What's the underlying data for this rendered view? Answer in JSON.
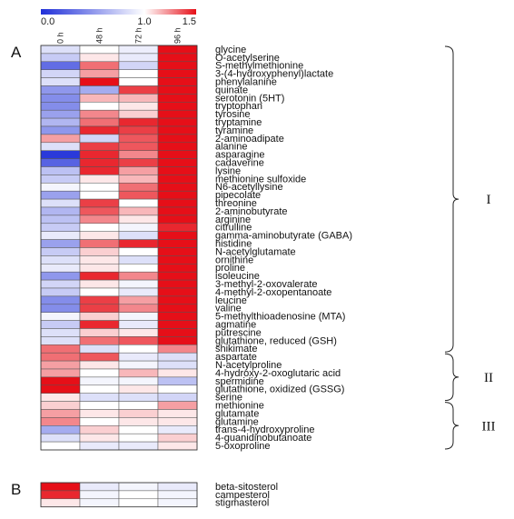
{
  "chart_data": {
    "type": "heatmap",
    "colorbar": {
      "ticks": [
        "0.0",
        "1.0",
        "1.5"
      ],
      "range": [
        0.0,
        1.5
      ],
      "colors": {
        "low": "#1f2fd8",
        "mid": "#ffffff",
        "high": "#e60f18"
      }
    },
    "columns": [
      "0 h",
      "48 h",
      "72 h",
      "96 h"
    ],
    "panels": [
      {
        "label": "A",
        "rows": [
          {
            "name": "glycine",
            "values": [
              0.85,
              1.0,
              0.92,
              1.6
            ]
          },
          {
            "name": "O-acetylserine",
            "values": [
              0.75,
              1.05,
              0.9,
              1.5
            ]
          },
          {
            "name": "S-methylmethionine",
            "values": [
              0.3,
              1.3,
              0.8,
              1.5
            ]
          },
          {
            "name": "3-(4-hydroxyphenyl)lactate",
            "values": [
              0.8,
              1.2,
              1.0,
              1.5
            ]
          },
          {
            "name": "phenylalanine",
            "values": [
              0.85,
              1.5,
              1.0,
              1.5
            ]
          },
          {
            "name": "quinate",
            "values": [
              0.5,
              0.6,
              1.4,
              1.5
            ]
          },
          {
            "name": "serotonin (5HT)",
            "values": [
              0.45,
              1.15,
              1.15,
              1.5
            ]
          },
          {
            "name": "tryptophan",
            "values": [
              0.45,
              1.0,
              1.05,
              1.5
            ]
          },
          {
            "name": "tyrosine",
            "values": [
              0.55,
              1.25,
              1.1,
              1.5
            ]
          },
          {
            "name": "tryptamine",
            "values": [
              0.65,
              1.3,
              1.45,
              1.5
            ]
          },
          {
            "name": "tyramine",
            "values": [
              0.5,
              1.45,
              1.4,
              1.5
            ]
          },
          {
            "name": "2-aminoadipate",
            "values": [
              1.2,
              0.8,
              1.35,
              1.5
            ]
          },
          {
            "name": "alanine",
            "values": [
              0.85,
              1.4,
              1.35,
              1.5
            ]
          },
          {
            "name": "asparagine",
            "values": [
              0.05,
              1.45,
              1.25,
              1.5
            ]
          },
          {
            "name": "cadaverine",
            "values": [
              0.25,
              1.45,
              1.4,
              1.5
            ]
          },
          {
            "name": "lysine",
            "values": [
              0.7,
              1.45,
              1.2,
              1.5
            ]
          },
          {
            "name": "methionine sulfoxide",
            "values": [
              0.75,
              1.05,
              1.15,
              1.5
            ]
          },
          {
            "name": "N6-acetyllysine",
            "values": [
              0.95,
              1.0,
              1.3,
              1.5
            ]
          },
          {
            "name": "pipecolate",
            "values": [
              0.55,
              1.0,
              1.35,
              1.5
            ]
          },
          {
            "name": "threonine",
            "values": [
              0.85,
              1.4,
              1.0,
              1.5
            ]
          },
          {
            "name": "2-aminobutyrate",
            "values": [
              0.65,
              1.35,
              1.15,
              1.5
            ]
          },
          {
            "name": "arginine",
            "values": [
              0.7,
              1.25,
              1.05,
              1.5
            ]
          },
          {
            "name": "citrulline",
            "values": [
              0.75,
              1.0,
              0.95,
              1.45
            ]
          },
          {
            "name": "gamma-aminobutyrate (GABA)",
            "values": [
              0.9,
              1.05,
              0.85,
              1.5
            ]
          },
          {
            "name": "histidine",
            "values": [
              0.55,
              1.3,
              1.45,
              1.5
            ]
          },
          {
            "name": "N-acetylglutamate",
            "values": [
              0.75,
              1.1,
              1.0,
              1.5
            ]
          },
          {
            "name": "ornithine",
            "values": [
              0.85,
              1.05,
              0.85,
              1.5
            ]
          },
          {
            "name": "proline",
            "values": [
              0.9,
              1.05,
              1.0,
              1.5
            ]
          },
          {
            "name": "isoleucine",
            "values": [
              0.5,
              1.45,
              1.25,
              1.5
            ]
          },
          {
            "name": "3-methyl-2-oxovalerate",
            "values": [
              0.8,
              1.05,
              0.95,
              1.5
            ]
          },
          {
            "name": "4-methyl-2-oxopentanoate",
            "values": [
              0.75,
              1.0,
              0.9,
              1.5
            ]
          },
          {
            "name": "leucine",
            "values": [
              0.45,
              1.4,
              1.2,
              1.5
            ]
          },
          {
            "name": "valine",
            "values": [
              0.45,
              1.4,
              1.25,
              1.5
            ]
          },
          {
            "name": "5-methylthioadenosine (MTA)",
            "values": [
              0.95,
              1.1,
              0.95,
              1.5
            ]
          },
          {
            "name": "agmatine",
            "values": [
              0.75,
              1.45,
              0.9,
              1.5
            ]
          },
          {
            "name": "putrescine",
            "values": [
              0.85,
              1.1,
              1.05,
              1.5
            ]
          },
          {
            "name": "glutathione, reduced (GSH)",
            "values": [
              0.85,
              1.3,
              1.35,
              1.5
            ]
          },
          {
            "name": "shikimate",
            "values": [
              1.3,
              0.85,
              1.0,
              1.25
            ]
          },
          {
            "name": "aspartate",
            "values": [
              1.3,
              1.35,
              0.9,
              0.85
            ]
          },
          {
            "name": "N-acetylproline",
            "values": [
              1.2,
              1.05,
              0.95,
              0.85
            ]
          },
          {
            "name": "4-hydroxy-2-oxoglutaric acid",
            "values": [
              1.2,
              1.0,
              1.15,
              1.05
            ]
          },
          {
            "name": "spermidine",
            "values": [
              1.5,
              0.95,
              0.95,
              0.7
            ]
          },
          {
            "name": "glutathione, oxidized (GSSG)",
            "values": [
              1.5,
              1.0,
              1.05,
              1.0
            ]
          },
          {
            "name": "serine",
            "values": [
              1.05,
              0.85,
              0.85,
              0.8
            ]
          },
          {
            "name": "methionine",
            "values": [
              1.1,
              1.0,
              1.0,
              1.2
            ]
          },
          {
            "name": "glutamate",
            "values": [
              1.2,
              1.05,
              1.1,
              1.05
            ]
          },
          {
            "name": "glutamine",
            "values": [
              1.25,
              1.0,
              1.05,
              1.05
            ]
          },
          {
            "name": "trans-4-hydroxyproline",
            "values": [
              0.6,
              1.1,
              1.0,
              0.9
            ]
          },
          {
            "name": "4-guanidinobutanoate",
            "values": [
              0.85,
              1.05,
              1.0,
              1.1
            ]
          },
          {
            "name": "5-oxoproline",
            "values": [
              1.0,
              0.9,
              0.9,
              1.05
            ]
          }
        ],
        "groups": [
          {
            "label": "I",
            "first": 0,
            "last": 37
          },
          {
            "label": "II",
            "first": 38,
            "last": 43
          },
          {
            "label": "III",
            "first": 44,
            "last": 49
          }
        ]
      },
      {
        "label": "B",
        "rows": [
          {
            "name": "beta-sitosterol",
            "values": [
              1.5,
              0.9,
              0.95,
              0.9
            ]
          },
          {
            "name": "campesterol",
            "values": [
              1.45,
              0.95,
              1.0,
              0.95
            ]
          },
          {
            "name": "stigmasterol",
            "values": [
              1.05,
              0.95,
              1.0,
              0.95
            ]
          }
        ]
      }
    ]
  }
}
